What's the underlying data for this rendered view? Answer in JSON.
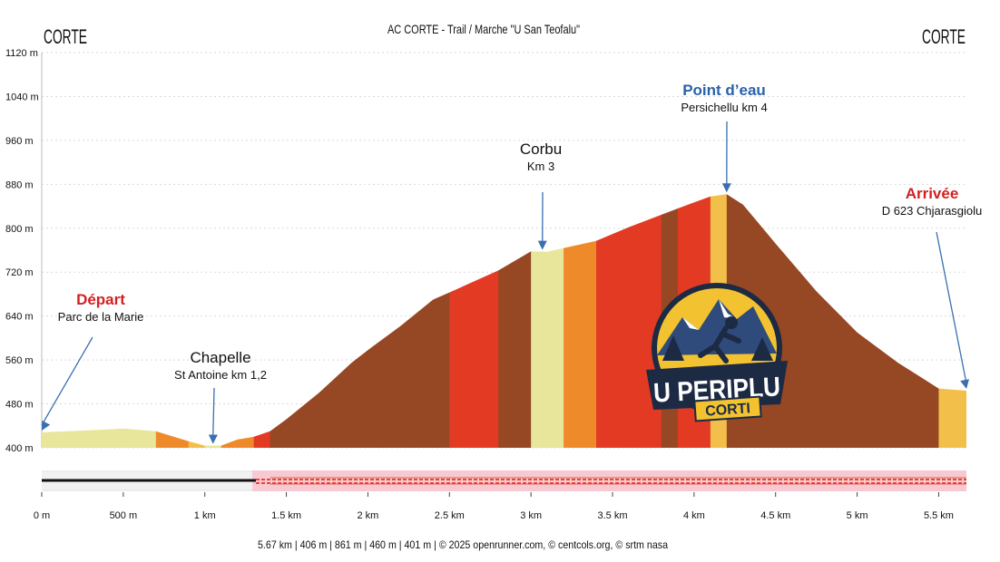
{
  "chart_data": {
    "type": "area",
    "title": "AC CORTE - Trail / Marche \"U San Teofalu\"",
    "start_label": "CORTE",
    "end_label": "CORTE",
    "x_unit": "km",
    "y_unit": "m",
    "xlim": [
      0,
      5.67
    ],
    "ylim": [
      400,
      1120
    ],
    "y_ticks": [
      {
        "value": 400,
        "label": "400 m"
      },
      {
        "value": 480,
        "label": "480 m"
      },
      {
        "value": 560,
        "label": "560 m"
      },
      {
        "value": 640,
        "label": "640 m"
      },
      {
        "value": 720,
        "label": "720 m"
      },
      {
        "value": 800,
        "label": "800 m"
      },
      {
        "value": 880,
        "label": "880 m"
      },
      {
        "value": 960,
        "label": "960 m"
      },
      {
        "value": 1040,
        "label": "1040 m"
      },
      {
        "value": 1120,
        "label": "1120 m"
      }
    ],
    "x_ticks": [
      {
        "value": 0,
        "label": "0 m"
      },
      {
        "value": 0.5,
        "label": "500 m"
      },
      {
        "value": 1,
        "label": "1 km"
      },
      {
        "value": 1.5,
        "label": "1.5 km"
      },
      {
        "value": 2,
        "label": "2 km"
      },
      {
        "value": 2.5,
        "label": "2.5 km"
      },
      {
        "value": 3,
        "label": "3 km"
      },
      {
        "value": 3.5,
        "label": "3.5 km"
      },
      {
        "value": 4,
        "label": "4 km"
      },
      {
        "value": 4.5,
        "label": "4.5 km"
      },
      {
        "value": 5,
        "label": "5 km"
      },
      {
        "value": 5.5,
        "label": "5.5 km"
      }
    ],
    "profile": {
      "x": [
        0,
        0.3,
        0.5,
        0.7,
        0.9,
        1.0,
        1.1,
        1.2,
        1.3,
        1.4,
        1.5,
        1.7,
        1.9,
        2.0,
        2.2,
        2.4,
        2.5,
        2.8,
        3.0,
        3.1,
        3.4,
        3.6,
        3.9,
        4.1,
        4.2,
        4.3,
        4.5,
        4.75,
        5.0,
        5.25,
        5.5,
        5.67
      ],
      "y": [
        428,
        432,
        435,
        430,
        412,
        404,
        404,
        415,
        420,
        430,
        452,
        500,
        555,
        578,
        622,
        670,
        683,
        723,
        758,
        757,
        777,
        802,
        836,
        858,
        862,
        843,
        772,
        685,
        610,
        555,
        508,
        504
      ]
    },
    "segments": [
      {
        "from": 0.0,
        "to": 0.7,
        "color": "#e8e69a"
      },
      {
        "from": 0.7,
        "to": 0.9,
        "color": "#ef8a2a"
      },
      {
        "from": 0.9,
        "to": 1.0,
        "color": "#f2c04a"
      },
      {
        "from": 1.0,
        "to": 1.1,
        "color": "#e8e69a"
      },
      {
        "from": 1.1,
        "to": 1.3,
        "color": "#ef8a2a"
      },
      {
        "from": 1.3,
        "to": 1.4,
        "color": "#e23a23"
      },
      {
        "from": 1.4,
        "to": 2.5,
        "color": "#964724"
      },
      {
        "from": 2.5,
        "to": 2.8,
        "color": "#e23a23"
      },
      {
        "from": 2.8,
        "to": 3.0,
        "color": "#964724"
      },
      {
        "from": 3.0,
        "to": 3.2,
        "color": "#e8e69a"
      },
      {
        "from": 3.2,
        "to": 3.4,
        "color": "#ef8a2a"
      },
      {
        "from": 3.4,
        "to": 3.8,
        "color": "#e23a23"
      },
      {
        "from": 3.8,
        "to": 3.9,
        "color": "#964724"
      },
      {
        "from": 3.9,
        "to": 4.1,
        "color": "#e23a23"
      },
      {
        "from": 4.1,
        "to": 4.2,
        "color": "#f2c04a"
      },
      {
        "from": 4.2,
        "to": 5.5,
        "color": "#964724"
      },
      {
        "from": 5.5,
        "to": 5.67,
        "color": "#f2c04a"
      }
    ],
    "annotations": [
      {
        "title": "Départ",
        "subtitle": "Parc de la Marie",
        "title_color": "#d42020",
        "bold": true,
        "target_km": 0.0
      },
      {
        "title": "Chapelle",
        "subtitle": "St Antoine km 1,2",
        "title_color": "#111111",
        "bold": false,
        "target_km": 1.05
      },
      {
        "title": "Corbu",
        "subtitle": "Km 3",
        "title_color": "#111111",
        "bold": false,
        "target_km": 3.07
      },
      {
        "title": "Point d’eau",
        "subtitle": "Persichellu km 4",
        "title_color": "#2a62a8",
        "bold": true,
        "target_km": 4.2
      },
      {
        "title": "Arrivée",
        "subtitle": "D 623 Chjarasgiolu",
        "title_color": "#d42020",
        "bold": true,
        "target_km": 5.67
      }
    ],
    "stats_text": "5.67 km | 406 m | 861 m | 460 m | 401 m | © 2025 openrunner.com, © centcols.org, © srtm nasa",
    "logo": {
      "line1": "U PERIPLU",
      "line2": "CORTI"
    },
    "colors": {
      "brown": "#964724",
      "red": "#e23a23",
      "orange": "#ef8a2a",
      "yellow": "#f2c04a",
      "pale": "#e8e69a",
      "arrow": "#3a6fb0",
      "grid": "#d9d9d9"
    }
  }
}
